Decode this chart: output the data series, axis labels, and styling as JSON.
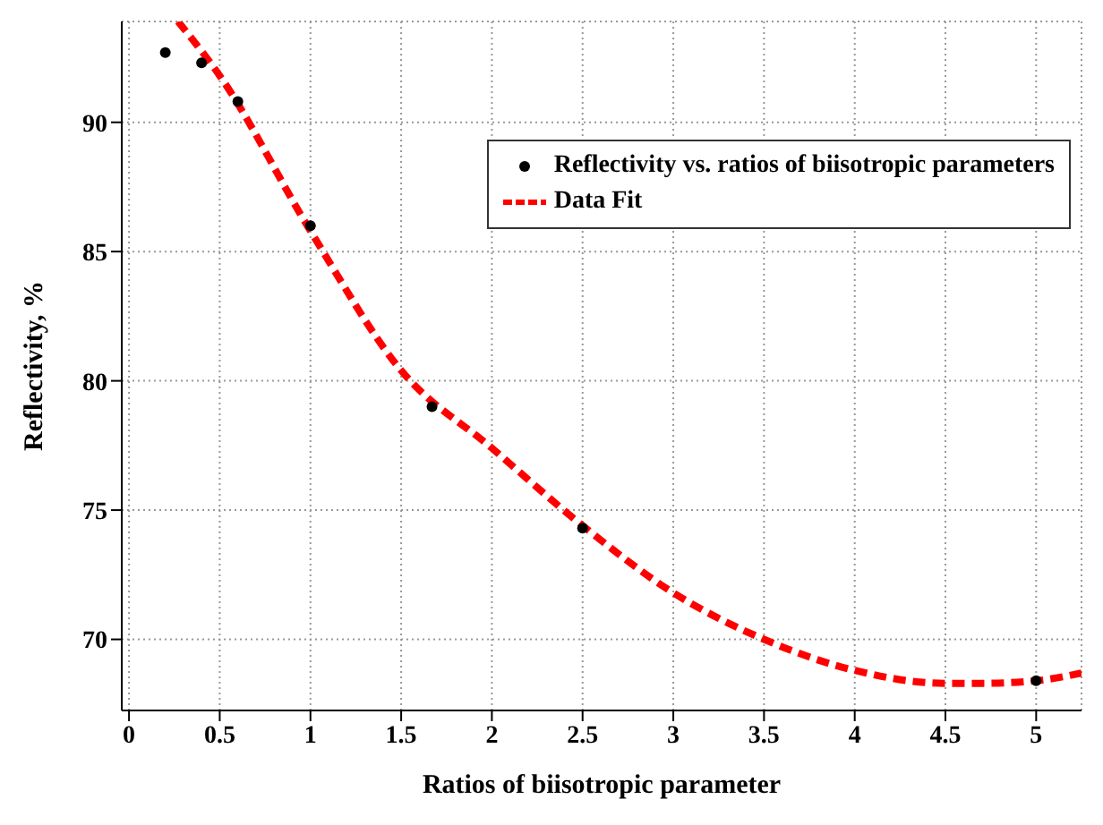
{
  "chart_data": {
    "type": "scatter",
    "xlabel": "Ratios of biisotropic parameter",
    "ylabel": "Reflectivity, %",
    "xlim": [
      -0.04,
      5.25
    ],
    "xticks": [
      0,
      0.5,
      1,
      1.5,
      2,
      2.5,
      3,
      3.5,
      4,
      4.5,
      5
    ],
    "ylim": [
      67.25,
      93.9
    ],
    "yticks": [
      70,
      75,
      80,
      85,
      90
    ],
    "grid": true,
    "legend": "top right",
    "series": [
      {
        "name": "Reflectivity vs. ratios of biisotropic parameters",
        "color": "#000000",
        "marker": "circle",
        "x": [
          0.2,
          0.4,
          0.6,
          1,
          1.67,
          2.5,
          5
        ],
        "values": [
          92.7,
          92.3,
          90.8,
          86,
          79,
          74.3,
          68.4
        ]
      },
      {
        "name": "Data Fit",
        "type": "line",
        "color": "#ff0000",
        "line_style": "dashed",
        "marker": "none",
        "x": [
          0.27,
          0.5,
          1,
          1.5,
          2,
          2.5,
          3,
          3.5,
          4,
          4.5,
          4.7,
          5,
          5.25
        ],
        "values": [
          93.9,
          91.8,
          85.8,
          80.4,
          77.4,
          74.4,
          71.8,
          70,
          68.8,
          68.3,
          68.3,
          68.4,
          68.7
        ]
      }
    ]
  }
}
